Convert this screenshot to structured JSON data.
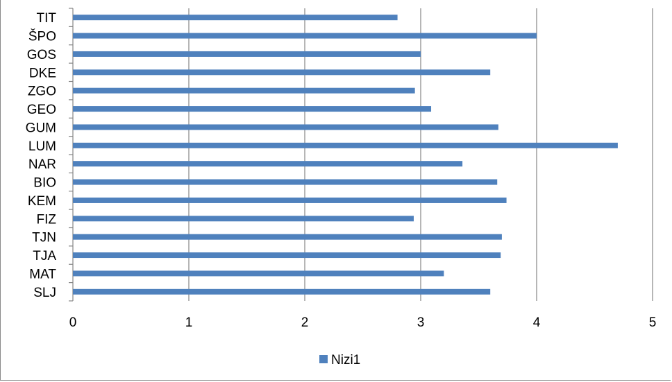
{
  "chart_data": {
    "type": "bar",
    "orientation": "horizontal",
    "categories": [
      "TIT",
      "ŠPO",
      "GOS",
      "DKE",
      "ZGO",
      "GEO",
      "GUM",
      "LUM",
      "NAR",
      "BIO",
      "KEM",
      "FIZ",
      "TJN",
      "TJA",
      "MAT",
      "SLJ"
    ],
    "series": [
      {
        "name": "Nizi1",
        "color": "#4f81bd",
        "values": [
          2.8,
          4.0,
          3.0,
          3.6,
          2.95,
          3.09,
          3.67,
          4.7,
          3.36,
          3.66,
          3.74,
          2.94,
          3.7,
          3.69,
          3.2,
          3.6
        ]
      }
    ],
    "xlim": [
      0,
      5
    ],
    "x_ticks": [
      0,
      1,
      2,
      3,
      4,
      5
    ],
    "x_tick_labels": [
      "0",
      "1",
      "2",
      "3",
      "4",
      "5"
    ],
    "grid": true,
    "legend_position": "bottom",
    "title": "",
    "xlabel": "",
    "ylabel": ""
  }
}
